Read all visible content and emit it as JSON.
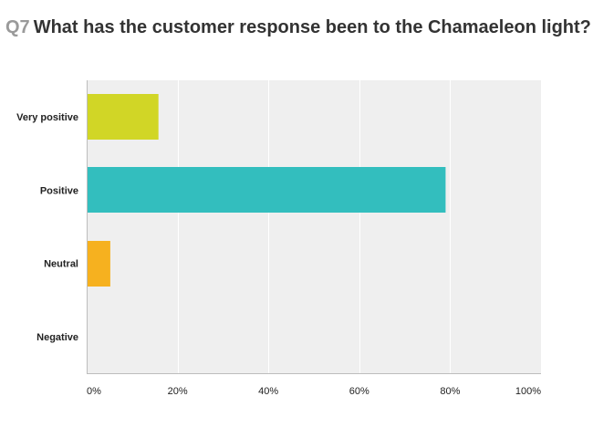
{
  "header": {
    "question_number": "Q7",
    "question_text": "What has the customer response been to the Chamaeleon light?"
  },
  "chart_data": {
    "type": "bar",
    "orientation": "horizontal",
    "title": "Q7 What has the customer response been to the Chamaeleon light?",
    "categories": [
      "Very positive",
      "Positive",
      "Neutral",
      "Negative"
    ],
    "values": [
      15.8,
      79,
      5.2,
      0
    ],
    "colors": [
      "#d1d626",
      "#33bebe",
      "#f6b11f",
      "#b0b0b0"
    ],
    "xlim": [
      0,
      100
    ],
    "xticks": [
      "0%",
      "20%",
      "40%",
      "60%",
      "80%",
      "100%"
    ],
    "xlabel": "",
    "ylabel": "",
    "grid": true,
    "plot_background": "#efefef"
  }
}
